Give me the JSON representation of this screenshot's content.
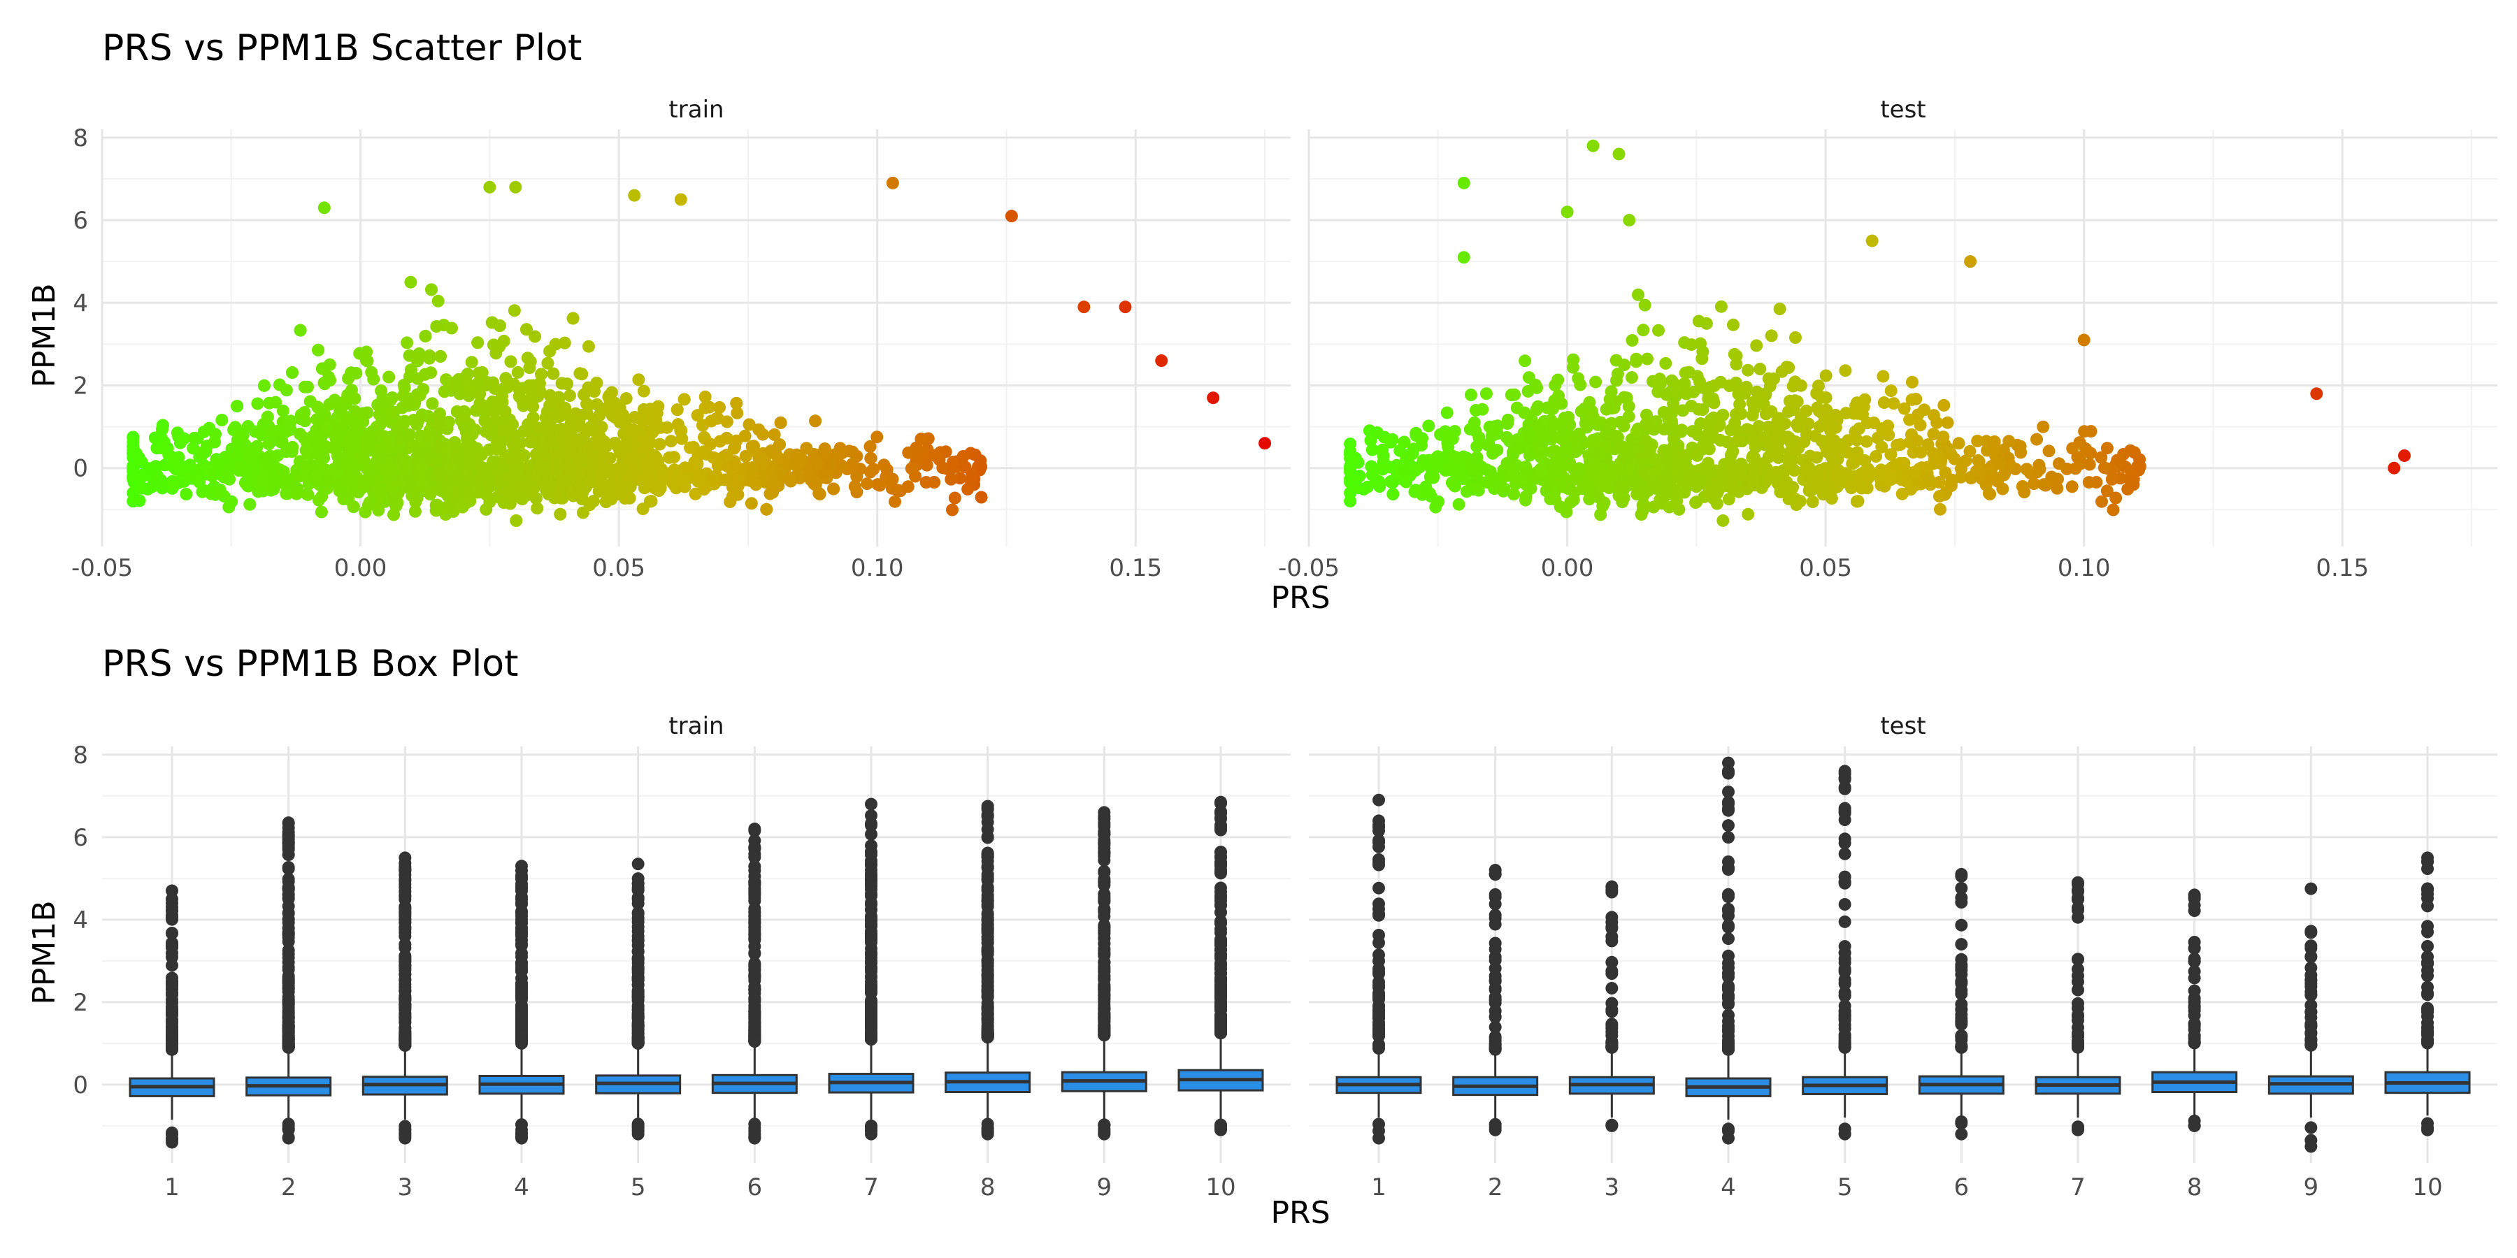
{
  "chart_data": [
    {
      "type": "scatter",
      "title": "PRS vs PPM1B Scatter Plot",
      "xlabel": "PRS",
      "ylabel": "PPM1B",
      "panels": [
        "train",
        "test"
      ],
      "xlim": [
        -0.05,
        0.18
      ],
      "ylim": [
        -1.9,
        8.2
      ],
      "x_ticks": [
        -0.05,
        0.0,
        0.05,
        0.1,
        0.15
      ],
      "x_tick_labels": [
        "-0.05",
        "0.00",
        "0.05",
        "0.10",
        "0.15"
      ],
      "y_ticks": [
        0,
        2,
        4,
        6,
        8
      ],
      "y_tick_labels": [
        "0",
        "2",
        "4",
        "6",
        "8"
      ],
      "color_scale": {
        "mapped_to": "PRS",
        "low": "#44ff00",
        "mid": "#c8b400",
        "high": "#e60000"
      },
      "grid": true,
      "legend": "none",
      "series": [
        {
          "panel": "train",
          "x_range": [
            -0.044,
            0.175
          ],
          "extreme_points": [
            [
              0.175,
              0.6
            ],
            [
              0.165,
              1.7
            ],
            [
              0.103,
              6.9
            ],
            [
              0.126,
              6.1
            ],
            [
              0.03,
              6.8
            ],
            [
              0.025,
              6.8
            ],
            [
              -0.007,
              6.3
            ],
            [
              0.062,
              6.5
            ],
            [
              0.053,
              6.6
            ],
            [
              0.148,
              3.9
            ],
            [
              0.14,
              3.9
            ],
            [
              0.155,
              2.6
            ]
          ],
          "core_cloud": {
            "x_center": 0.02,
            "y_median": 0.0,
            "y_upper_typical": 3.0,
            "y_lower": -1.3
          }
        },
        {
          "panel": "test",
          "x_range": [
            -0.042,
            0.162
          ],
          "extreme_points": [
            [
              0.005,
              7.8
            ],
            [
              0.01,
              7.6
            ],
            [
              -0.02,
              6.9
            ],
            [
              0.0,
              6.2
            ],
            [
              0.012,
              6.0
            ],
            [
              0.059,
              5.5
            ],
            [
              0.078,
              5.0
            ],
            [
              0.1,
              3.1
            ],
            [
              0.145,
              1.8
            ],
            [
              0.162,
              0.3
            ],
            [
              0.16,
              0.0
            ],
            [
              -0.02,
              5.1
            ]
          ],
          "core_cloud": {
            "x_center": 0.025,
            "y_median": 0.0,
            "y_upper_typical": 2.5,
            "y_lower": -1.3
          }
        }
      ]
    },
    {
      "type": "box",
      "title": "PRS vs PPM1B Box Plot",
      "xlabel": "PRS",
      "ylabel": "PPM1B",
      "panels": [
        "train",
        "test"
      ],
      "categories": [
        "1",
        "2",
        "3",
        "4",
        "5",
        "6",
        "7",
        "8",
        "9",
        "10"
      ],
      "ylim": [
        -1.9,
        8.2
      ],
      "y_ticks": [
        0,
        2,
        4,
        6,
        8
      ],
      "y_tick_labels": [
        "0",
        "2",
        "4",
        "6",
        "8"
      ],
      "box_color": "#2b8ee6",
      "grid": true,
      "series": [
        {
          "panel": "train",
          "q1": [
            -0.28,
            -0.26,
            -0.24,
            -0.22,
            -0.21,
            -0.2,
            -0.19,
            -0.18,
            -0.16,
            -0.14
          ],
          "median": [
            -0.05,
            -0.03,
            0.0,
            0.01,
            0.03,
            0.03,
            0.05,
            0.07,
            0.09,
            0.12
          ],
          "q3": [
            0.15,
            0.17,
            0.19,
            0.21,
            0.22,
            0.23,
            0.26,
            0.29,
            0.3,
            0.35
          ],
          "whisker_low": [
            -0.85,
            -0.85,
            -0.85,
            -0.85,
            -0.85,
            -0.85,
            -0.85,
            -0.85,
            -0.85,
            -0.85
          ],
          "whisker_high": [
            0.75,
            0.8,
            0.85,
            0.9,
            0.9,
            0.95,
            1.0,
            1.05,
            1.1,
            1.15
          ],
          "outlier_high_max": [
            4.7,
            6.35,
            5.5,
            5.3,
            5.35,
            6.2,
            6.8,
            6.75,
            6.6,
            6.85
          ],
          "outlier_low_min": [
            -1.4,
            -1.3,
            -1.3,
            -1.3,
            -1.2,
            -1.3,
            -1.2,
            -1.2,
            -1.2,
            -1.1
          ]
        },
        {
          "panel": "test",
          "q1": [
            -0.2,
            -0.25,
            -0.22,
            -0.28,
            -0.23,
            -0.22,
            -0.22,
            -0.18,
            -0.22,
            -0.2
          ],
          "median": [
            0.0,
            -0.04,
            0.0,
            -0.06,
            -0.02,
            0.0,
            -0.01,
            0.06,
            0.02,
            0.04
          ],
          "q3": [
            0.18,
            0.18,
            0.18,
            0.15,
            0.18,
            0.2,
            0.18,
            0.3,
            0.2,
            0.3
          ],
          "whisker_low": [
            -0.8,
            -0.85,
            -0.8,
            -0.85,
            -0.8,
            -0.8,
            -0.8,
            -0.75,
            -0.8,
            -0.75
          ],
          "whisker_high": [
            0.75,
            0.75,
            0.8,
            0.75,
            0.8,
            0.8,
            0.8,
            0.9,
            0.85,
            0.9
          ],
          "outlier_high_max": [
            6.9,
            5.2,
            4.8,
            7.8,
            7.6,
            5.1,
            4.9,
            4.6,
            4.75,
            5.5
          ],
          "outlier_low_min": [
            -1.3,
            -1.1,
            -1.0,
            -1.3,
            -1.2,
            -1.2,
            -1.1,
            -1.0,
            -1.5,
            -1.1
          ]
        }
      ]
    }
  ]
}
